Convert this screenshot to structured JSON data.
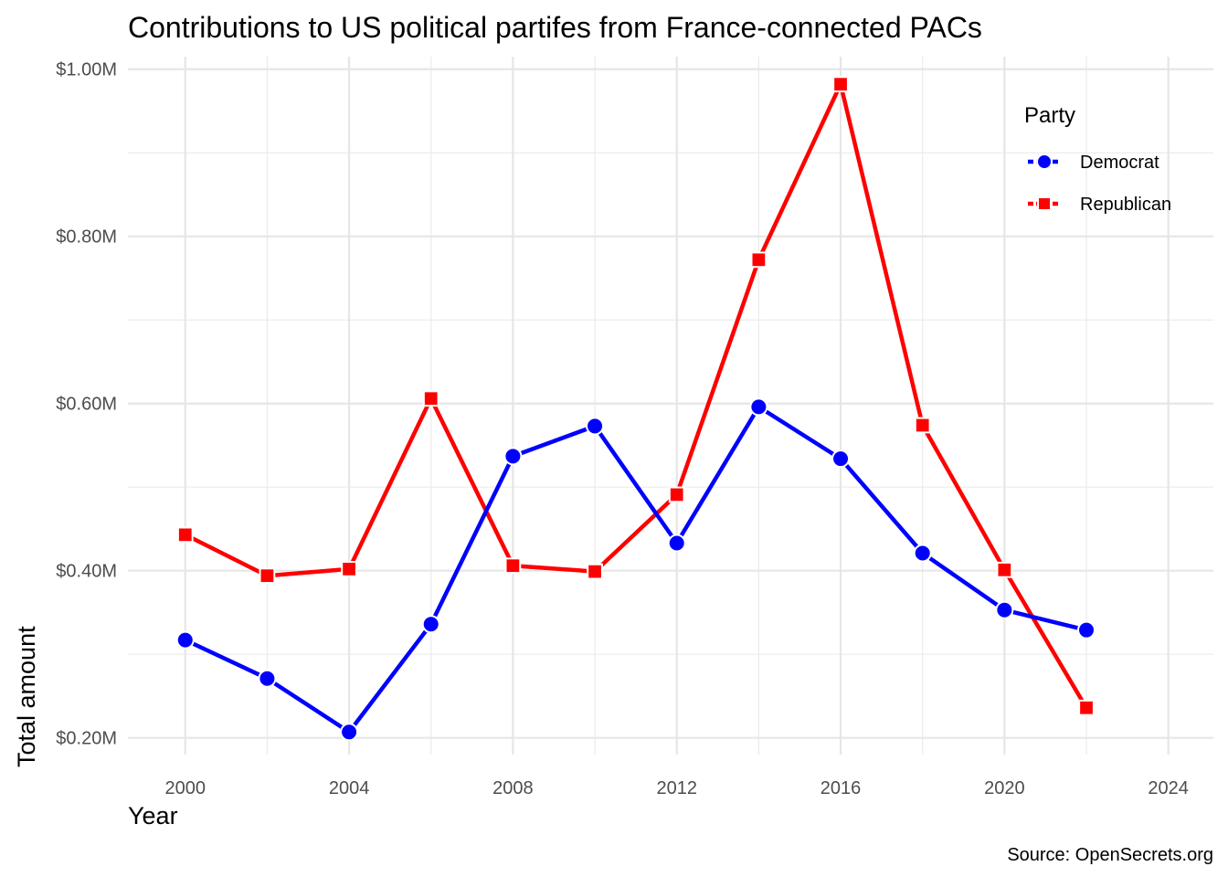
{
  "chart_data": {
    "type": "line",
    "title": "Contributions to US political partifes from France-connected PACs",
    "xlabel": "Year",
    "ylabel": "Total amount",
    "caption": "Source: OpenSecrets.org",
    "x": [
      2000,
      2002,
      2004,
      2006,
      2008,
      2010,
      2012,
      2014,
      2016,
      2018,
      2020,
      2022
    ],
    "xlim": [
      1998.6,
      2025.1
    ],
    "ylim": [
      0.18,
      1.015
    ],
    "x_ticks": [
      {
        "value": 2000,
        "label": "2000"
      },
      {
        "value": 2004,
        "label": "2004"
      },
      {
        "value": 2008,
        "label": "2008"
      },
      {
        "value": 2012,
        "label": "2012"
      },
      {
        "value": 2016,
        "label": "2016"
      },
      {
        "value": 2020,
        "label": "2020"
      },
      {
        "value": 2024,
        "label": "2024"
      }
    ],
    "y_ticks": [
      {
        "value": 0.2,
        "label": "$0.20M"
      },
      {
        "value": 0.4,
        "label": "$0.40M"
      },
      {
        "value": 0.6,
        "label": "$0.60M"
      },
      {
        "value": 0.8,
        "label": "$0.80M"
      },
      {
        "value": 1.0,
        "label": "$1.00M"
      }
    ],
    "grid": true,
    "legend": {
      "title": "Party",
      "position": "top-right"
    },
    "series": [
      {
        "name": "Democrat",
        "color": "#0000ff",
        "marker": "circle",
        "values": [
          0.317,
          0.271,
          0.207,
          0.336,
          0.537,
          0.573,
          0.433,
          0.596,
          0.534,
          0.421,
          0.353,
          0.329
        ]
      },
      {
        "name": "Republican",
        "color": "#ff0000",
        "marker": "square",
        "values": [
          0.443,
          0.394,
          0.402,
          0.606,
          0.406,
          0.399,
          0.491,
          0.772,
          0.982,
          0.574,
          0.401,
          0.236
        ]
      }
    ]
  }
}
